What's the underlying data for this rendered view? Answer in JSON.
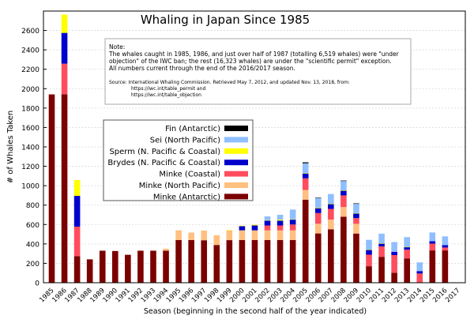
{
  "chart_data": {
    "type": "bar",
    "stacked": true,
    "title": "Whaling in Japan Since 1985",
    "xlabel": "Season (beginning in the second half of the year indicated)",
    "ylabel": "# of Whales Taken",
    "ylim": [
      0,
      2800
    ],
    "yticks": [
      0,
      200,
      400,
      600,
      800,
      1000,
      1200,
      1400,
      1600,
      1800,
      2000,
      2200,
      2400,
      2600
    ],
    "grid": true,
    "legend_position": "center-left",
    "categories": [
      "1985",
      "1986",
      "1987",
      "1988",
      "1989",
      "1990",
      "1991",
      "1992",
      "1993",
      "1994",
      "1995",
      "1996",
      "1997",
      "1998",
      "1999",
      "2000",
      "2001",
      "2002",
      "2003",
      "2004",
      "2005",
      "2006",
      "2007",
      "2008",
      "2009",
      "2010",
      "2011",
      "2012",
      "2013",
      "2014",
      "2015",
      "2016",
      "2017"
    ],
    "series": [
      {
        "name": "Minke (Antarctic)",
        "color": "#7b0000",
        "values": [
          1941,
          1941,
          273,
          241,
          330,
          327,
          288,
          330,
          330,
          330,
          440,
          440,
          438,
          389,
          439,
          440,
          440,
          440,
          440,
          440,
          856,
          508,
          551,
          680,
          507,
          170,
          267,
          103,
          251,
          0,
          333,
          333,
          0
        ]
      },
      {
        "name": "Minke (North Pacific)",
        "color": "#ffbf80",
        "values": [
          0,
          0,
          0,
          0,
          0,
          0,
          0,
          0,
          0,
          21,
          100,
          77,
          100,
          100,
          100,
          100,
          100,
          100,
          100,
          100,
          100,
          100,
          100,
          100,
          100,
          0,
          0,
          0,
          0,
          0,
          0,
          0,
          0
        ]
      },
      {
        "name": "Minke (Coastal)",
        "color": "#ff4d5e",
        "values": [
          0,
          317,
          305,
          0,
          0,
          0,
          0,
          0,
          0,
          0,
          0,
          0,
          0,
          0,
          0,
          0,
          0,
          50,
          50,
          60,
          120,
          110,
          110,
          120,
          59,
          119,
          108,
          182,
          90,
          95,
          70,
          30,
          0
        ]
      },
      {
        "name": "Brydes (N. Pacific & Coastal)",
        "color": "#0000cc",
        "values": [
          0,
          317,
          317,
          0,
          0,
          0,
          0,
          0,
          0,
          0,
          0,
          0,
          0,
          0,
          0,
          43,
          50,
          50,
          50,
          51,
          50,
          50,
          50,
          50,
          50,
          50,
          30,
          34,
          28,
          25,
          25,
          25,
          0
        ]
      },
      {
        "name": "Sperm (N. Pacific & Coastal)",
        "color": "#ffff00",
        "values": [
          0,
          188,
          163,
          0,
          0,
          0,
          0,
          0,
          0,
          0,
          0,
          0,
          0,
          0,
          5,
          5,
          8,
          5,
          10,
          3,
          5,
          5,
          3,
          2,
          1,
          3,
          1,
          0,
          1,
          0,
          0,
          0,
          0
        ]
      },
      {
        "name": "Sei (North Pacific)",
        "color": "#8fbfff",
        "values": [
          0,
          0,
          0,
          0,
          0,
          0,
          0,
          0,
          0,
          0,
          0,
          0,
          0,
          0,
          0,
          0,
          0,
          39,
          50,
          100,
          100,
          100,
          100,
          100,
          100,
          100,
          100,
          100,
          100,
          90,
          90,
          90,
          0
        ]
      },
      {
        "name": "Fin (Antarctic)",
        "color": "#000000",
        "values": [
          0,
          0,
          0,
          0,
          0,
          0,
          0,
          0,
          0,
          0,
          0,
          0,
          0,
          0,
          0,
          0,
          0,
          0,
          0,
          0,
          10,
          3,
          0,
          1,
          1,
          0,
          0,
          0,
          0,
          0,
          0,
          0,
          0
        ]
      }
    ],
    "legend_order": [
      "Fin (Antarctic)",
      "Sei (North Pacific)",
      "Sperm (N. Pacific & Coastal)",
      "Brydes (N. Pacific & Coastal)",
      "Minke (Coastal)",
      "Minke (North Pacific)",
      "Minke (Antarctic)"
    ],
    "note": {
      "heading": "Note:",
      "lines": [
        "The whales caught in 1985, 1986, and just over half of 1987 (totalling 6,519 whales) were \"under",
        "objection\" of the IWC ban; the rest (16,323 whales) are under the \"scientific permit\" exception.",
        "All numbers current through the end of the 2016/2017 season."
      ],
      "source_lines": [
        "Source: International Whaling Commission. Retrieved May 7, 2012, and updated Nov. 13, 2018, from:",
        "https://iwc.int/table_permit and",
        "https://iwc.int/table_objection"
      ]
    }
  }
}
